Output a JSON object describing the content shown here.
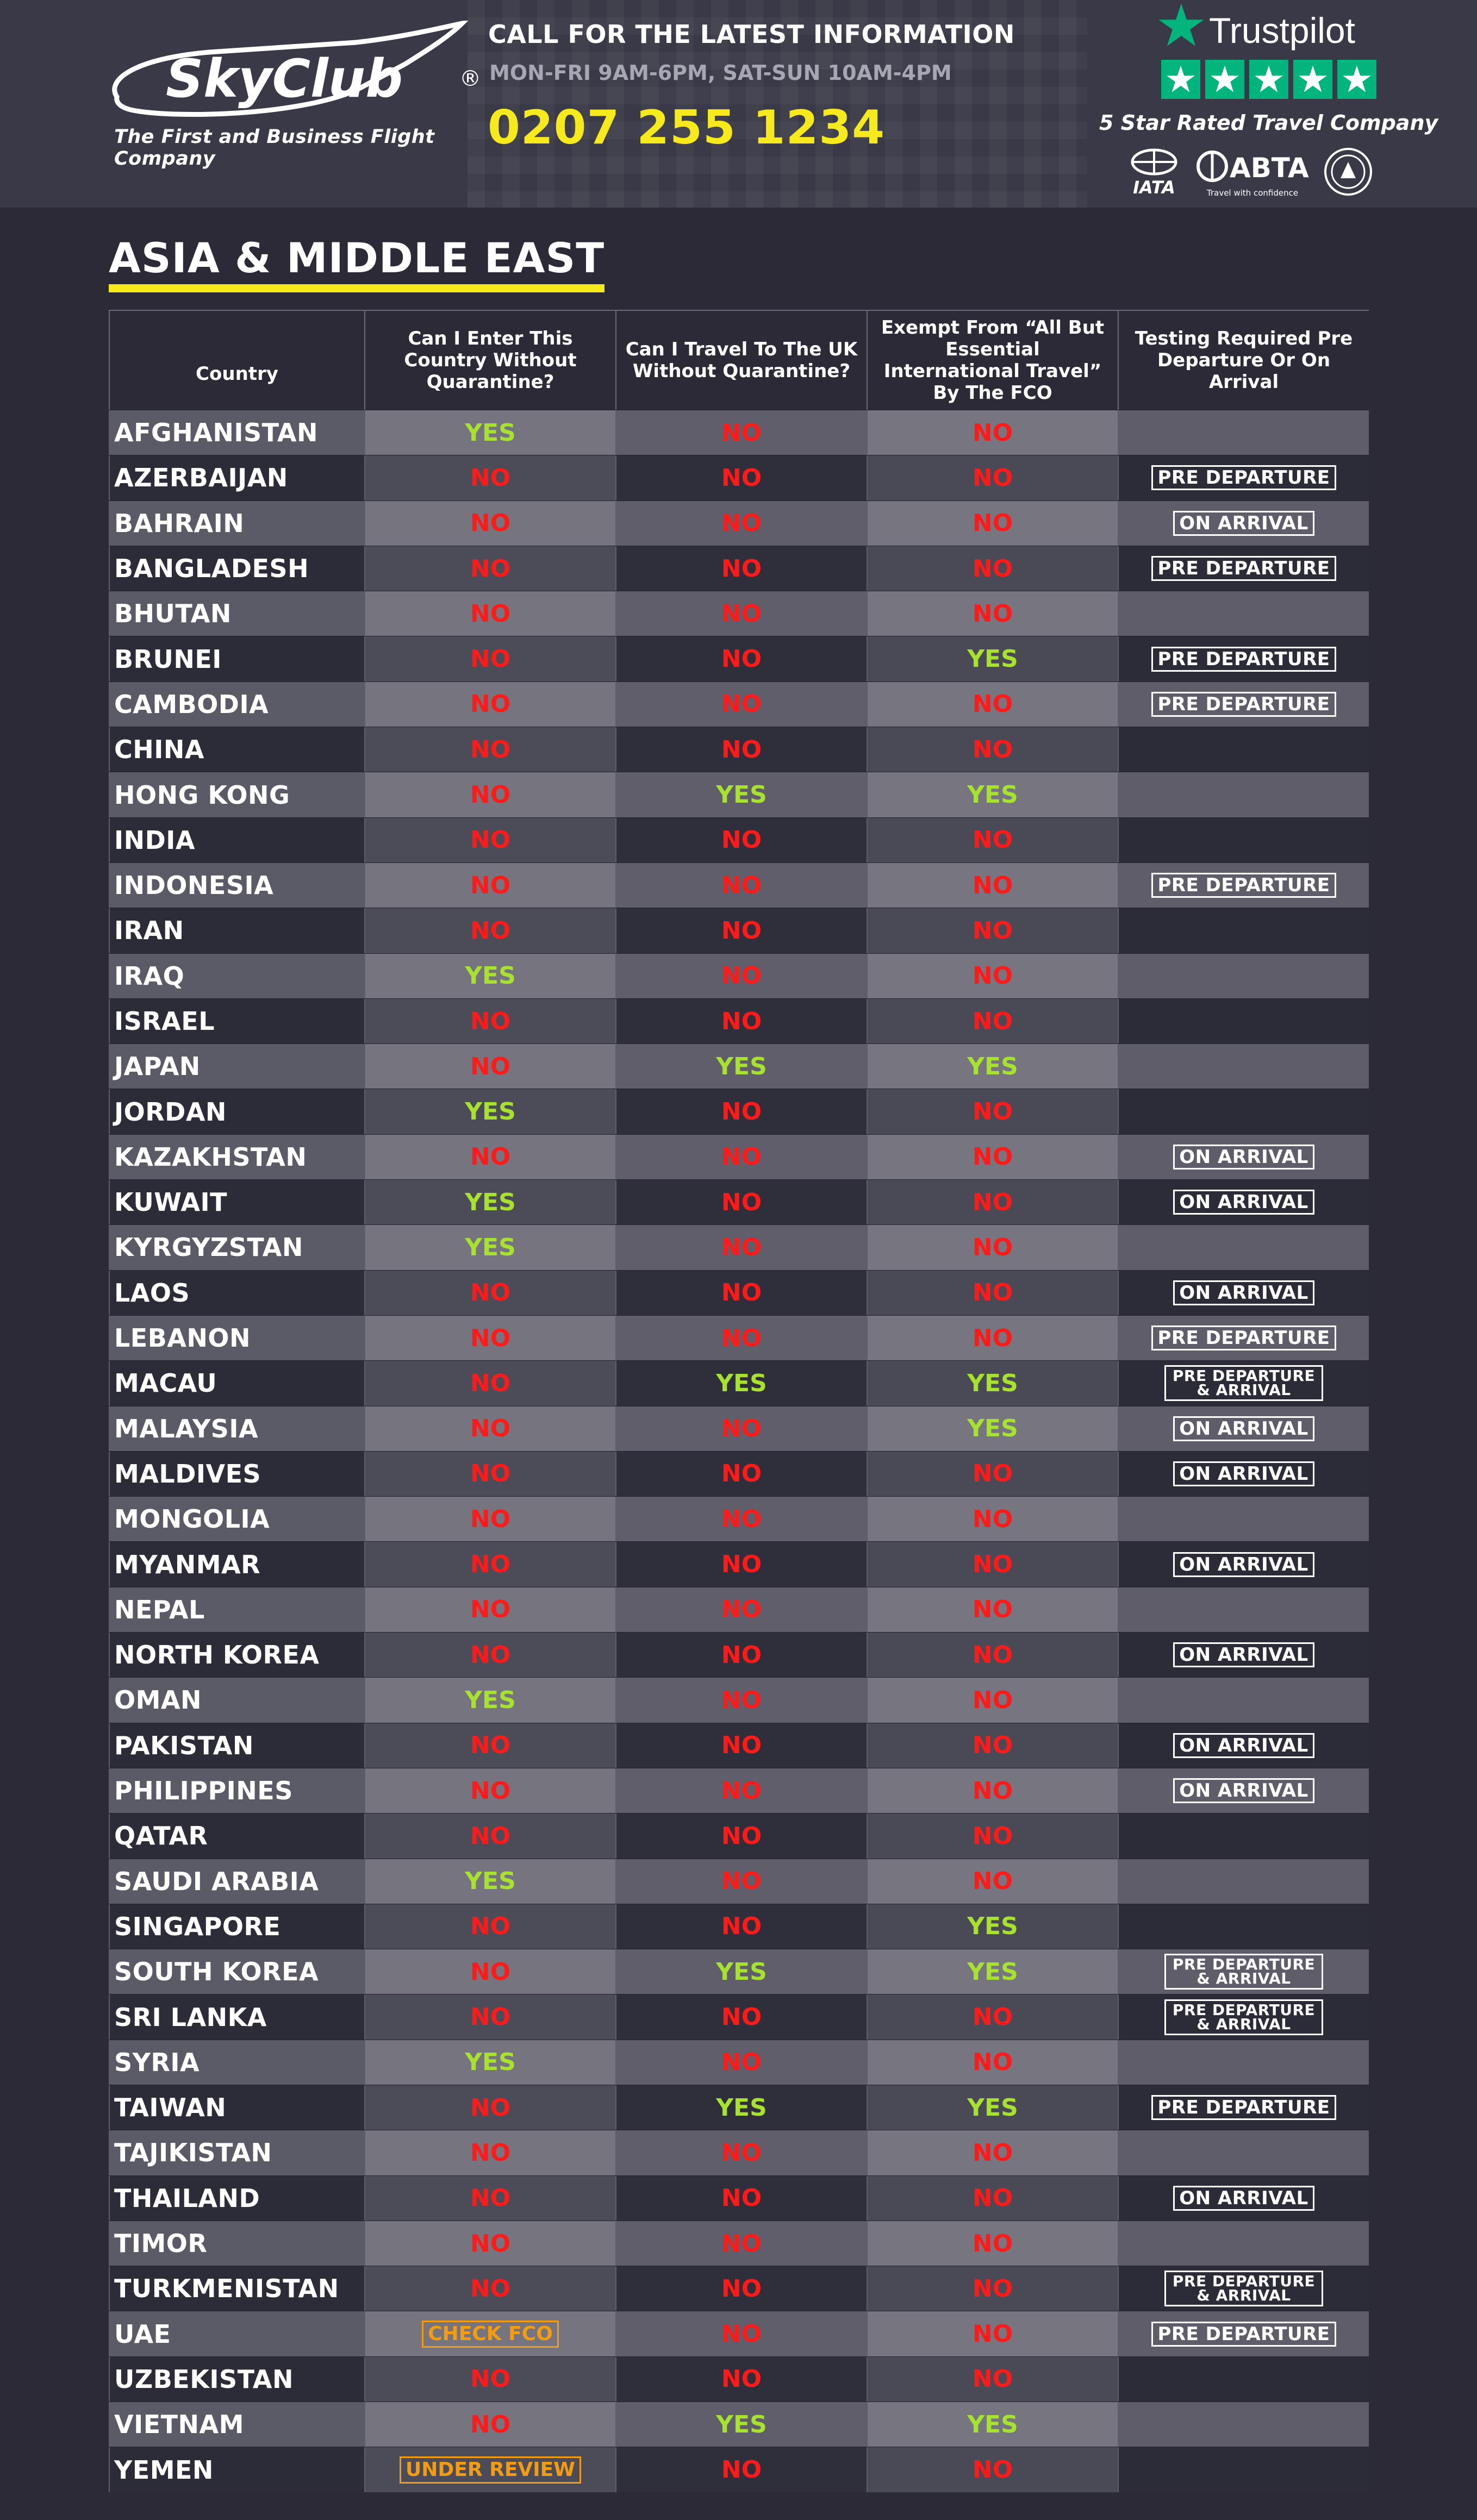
{
  "header": {
    "brand": "SkyClub",
    "tagline": "The First and Business Flight Company",
    "call_title": "CALL FOR THE LATEST INFORMATION",
    "call_hours": "MON-FRI 9AM-6PM, SAT-SUN 10AM-4PM",
    "phone": "0207 255 1234",
    "trustpilot": "Trustpilot",
    "rating_caption": "5 Star Rated Travel Company",
    "accreditations": [
      "IATA",
      "ABTA",
      "Travel with confidence"
    ],
    "colors": {
      "accent": "#f6ea1d",
      "trustpilot_green": "#04b47d"
    }
  },
  "section": {
    "title": "ASIA & MIDDLE EAST",
    "columns": [
      "Country",
      "Can I Enter This Country Without Quarantine?",
      "Can I Travel To The UK Without Quarantine?",
      "Exempt From “All But Essential International Travel” By The FCO",
      "Testing Required Pre Departure Or On Arrival"
    ]
  },
  "rows": [
    {
      "country": "AFGHANISTAN",
      "enter": "YES",
      "uk": "NO",
      "fco": "NO",
      "test": ""
    },
    {
      "country": "AZERBAIJAN",
      "enter": "NO",
      "uk": "NO",
      "fco": "NO",
      "test": "PRE DEPARTURE"
    },
    {
      "country": "BAHRAIN",
      "enter": "NO",
      "uk": "NO",
      "fco": "NO",
      "test": "ON ARRIVAL"
    },
    {
      "country": "BANGLADESH",
      "enter": "NO",
      "uk": "NO",
      "fco": "NO",
      "test": "PRE DEPARTURE"
    },
    {
      "country": "BHUTAN",
      "enter": "NO",
      "uk": "NO",
      "fco": "NO",
      "test": ""
    },
    {
      "country": "BRUNEI",
      "enter": "NO",
      "uk": "NO",
      "fco": "YES",
      "test": "PRE DEPARTURE"
    },
    {
      "country": "CAMBODIA",
      "enter": "NO",
      "uk": "NO",
      "fco": "NO",
      "test": "PRE DEPARTURE"
    },
    {
      "country": "CHINA",
      "enter": "NO",
      "uk": "NO",
      "fco": "NO",
      "test": ""
    },
    {
      "country": "HONG KONG",
      "enter": "NO",
      "uk": "YES",
      "fco": "YES",
      "test": ""
    },
    {
      "country": "INDIA",
      "enter": "NO",
      "uk": "NO",
      "fco": "NO",
      "test": ""
    },
    {
      "country": "INDONESIA",
      "enter": "NO",
      "uk": "NO",
      "fco": "NO",
      "test": "PRE DEPARTURE"
    },
    {
      "country": "IRAN",
      "enter": "NO",
      "uk": "NO",
      "fco": "NO",
      "test": ""
    },
    {
      "country": "IRAQ",
      "enter": "YES",
      "uk": "NO",
      "fco": "NO",
      "test": ""
    },
    {
      "country": "ISRAEL",
      "enter": "NO",
      "uk": "NO",
      "fco": "NO",
      "test": ""
    },
    {
      "country": "JAPAN",
      "enter": "NO",
      "uk": "YES",
      "fco": "YES",
      "test": ""
    },
    {
      "country": "JORDAN",
      "enter": "YES",
      "uk": "NO",
      "fco": "NO",
      "test": ""
    },
    {
      "country": "KAZAKHSTAN",
      "enter": "NO",
      "uk": "NO",
      "fco": "NO",
      "test": "ON ARRIVAL"
    },
    {
      "country": "KUWAIT",
      "enter": "YES",
      "uk": "NO",
      "fco": "NO",
      "test": "ON ARRIVAL"
    },
    {
      "country": "KYRGYZSTAN",
      "enter": "YES",
      "uk": "NO",
      "fco": "NO",
      "test": ""
    },
    {
      "country": "LAOS",
      "enter": "NO",
      "uk": "NO",
      "fco": "NO",
      "test": "ON ARRIVAL"
    },
    {
      "country": "LEBANON",
      "enter": "NO",
      "uk": "NO",
      "fco": "NO",
      "test": "PRE DEPARTURE"
    },
    {
      "country": "MACAU",
      "enter": "NO",
      "uk": "YES",
      "fco": "YES",
      "test": "PRE DEPARTURE\n& ARRIVAL"
    },
    {
      "country": "MALAYSIA",
      "enter": "NO",
      "uk": "NO",
      "fco": "YES",
      "test": "ON ARRIVAL"
    },
    {
      "country": "MALDIVES",
      "enter": "NO",
      "uk": "NO",
      "fco": "NO",
      "test": "ON ARRIVAL"
    },
    {
      "country": "MONGOLIA",
      "enter": "NO",
      "uk": "NO",
      "fco": "NO",
      "test": ""
    },
    {
      "country": "MYANMAR",
      "enter": "NO",
      "uk": "NO",
      "fco": "NO",
      "test": "ON ARRIVAL"
    },
    {
      "country": "NEPAL",
      "enter": "NO",
      "uk": "NO",
      "fco": "NO",
      "test": ""
    },
    {
      "country": "NORTH KOREA",
      "enter": "NO",
      "uk": "NO",
      "fco": "NO",
      "test": "ON ARRIVAL"
    },
    {
      "country": "OMAN",
      "enter": "YES",
      "uk": "NO",
      "fco": "NO",
      "test": ""
    },
    {
      "country": "PAKISTAN",
      "enter": "NO",
      "uk": "NO",
      "fco": "NO",
      "test": "ON ARRIVAL"
    },
    {
      "country": "PHILIPPINES",
      "enter": "NO",
      "uk": "NO",
      "fco": "NO",
      "test": "ON ARRIVAL"
    },
    {
      "country": "QATAR",
      "enter": "NO",
      "uk": "NO",
      "fco": "NO",
      "test": ""
    },
    {
      "country": "SAUDI ARABIA",
      "enter": "YES",
      "uk": "NO",
      "fco": "NO",
      "test": ""
    },
    {
      "country": "SINGAPORE",
      "enter": "NO",
      "uk": "NO",
      "fco": "YES",
      "test": ""
    },
    {
      "country": "SOUTH KOREA",
      "enter": "NO",
      "uk": "YES",
      "fco": "YES",
      "test": "PRE DEPARTURE\n& ARRIVAL"
    },
    {
      "country": "SRI LANKA",
      "enter": "NO",
      "uk": "NO",
      "fco": "NO",
      "test": "PRE DEPARTURE\n& ARRIVAL"
    },
    {
      "country": "SYRIA",
      "enter": "YES",
      "uk": "NO",
      "fco": "NO",
      "test": ""
    },
    {
      "country": "TAIWAN",
      "enter": "NO",
      "uk": "YES",
      "fco": "YES",
      "test": "PRE DEPARTURE"
    },
    {
      "country": "TAJIKISTAN",
      "enter": "NO",
      "uk": "NO",
      "fco": "NO",
      "test": ""
    },
    {
      "country": "THAILAND",
      "enter": "NO",
      "uk": "NO",
      "fco": "NO",
      "test": "ON ARRIVAL"
    },
    {
      "country": "TIMOR",
      "enter": "NO",
      "uk": "NO",
      "fco": "NO",
      "test": ""
    },
    {
      "country": "TURKMENISTAN",
      "enter": "NO",
      "uk": "NO",
      "fco": "NO",
      "test": "PRE DEPARTURE\n& ARRIVAL"
    },
    {
      "country": "UAE",
      "enter": "CHECK FCO",
      "uk": "NO",
      "fco": "NO",
      "test": "PRE DEPARTURE"
    },
    {
      "country": "UZBEKISTAN",
      "enter": "NO",
      "uk": "NO",
      "fco": "NO",
      "test": ""
    },
    {
      "country": "VIETNAM",
      "enter": "NO",
      "uk": "YES",
      "fco": "YES",
      "test": ""
    },
    {
      "country": "YEMEN",
      "enter": "UNDER REVIEW",
      "uk": "NO",
      "fco": "NO",
      "test": ""
    }
  ]
}
